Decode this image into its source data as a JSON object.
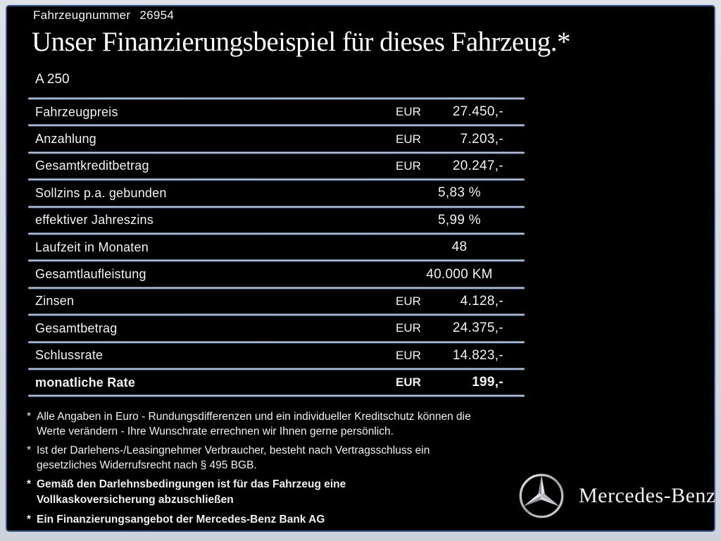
{
  "header": {
    "vehicle_number_label": "Fahrzeugnummer",
    "vehicle_number_value": "26954",
    "title": "Unser Finanzierungsbeispiel für dieses Fahrzeug.*",
    "model": "A 250"
  },
  "table": {
    "rows": [
      {
        "label": "Fahrzeugpreis",
        "currency": "EUR",
        "value": "27.450,-",
        "bold": false
      },
      {
        "label": "Anzahlung",
        "currency": "EUR",
        "value": "7.203,-",
        "bold": false
      },
      {
        "label": "Gesamtkreditbetrag",
        "currency": "EUR",
        "value": "20.247,-",
        "bold": false
      },
      {
        "label": "Sollzins p.a. gebunden",
        "currency": "",
        "value": "5,83 %",
        "bold": false
      },
      {
        "label": "effektiver Jahreszins",
        "currency": "",
        "value": "5,99 %",
        "bold": false
      },
      {
        "label": "Laufzeit in Monaten",
        "currency": "",
        "value": "48",
        "bold": false
      },
      {
        "label": "Gesamtlaufleistung",
        "currency": "",
        "value": "40.000 KM",
        "bold": false
      },
      {
        "label": "Zinsen",
        "currency": "EUR",
        "value": "4.128,-",
        "bold": false
      },
      {
        "label": "Gesamtbetrag",
        "currency": "EUR",
        "value": "24.375,-",
        "bold": false
      },
      {
        "label": "Schlussrate",
        "currency": "EUR",
        "value": "14.823,-",
        "bold": false
      },
      {
        "label": "monatliche Rate",
        "currency": "EUR",
        "value": "199,-",
        "bold": true
      }
    ]
  },
  "footnotes": [
    {
      "marker": "*",
      "bold": false,
      "lines": [
        "Alle Angaben in Euro - Rundungsdifferenzen und ein individueller Kreditschutz können die",
        "Werte verändern - Ihre Wunschrate errechnen wir Ihnen gerne persönlich."
      ]
    },
    {
      "marker": "*",
      "bold": false,
      "lines": [
        "Ist der Darlehens-/Leasingnehmer Verbraucher, besteht nach Vertragsschluss ein",
        "gesetzliches Widerrufsrecht nach § 495 BGB."
      ]
    },
    {
      "marker": "*",
      "bold": true,
      "lines": [
        "Gemäß den Darlehnsbedingungen ist für das Fahrzeug eine",
        "Vollkaskoversicherung abzuschließen"
      ]
    },
    {
      "marker": "*",
      "bold": true,
      "lines": [
        "Ein Finanzierungsangebot der Mercedes-Benz Bank AG"
      ]
    }
  ],
  "brand": {
    "name": "Mercedes-Benz",
    "logo_icon": "mercedes-star-icon"
  },
  "colors": {
    "frame_background": "#d2d8e0",
    "panel_background": "#000000",
    "border_blue": "#3c5c8e",
    "text": "#f2f2f2",
    "separator_light": "#c9cfd9",
    "separator_blue": "#3a5584",
    "star_silver": "#c6cacf"
  }
}
